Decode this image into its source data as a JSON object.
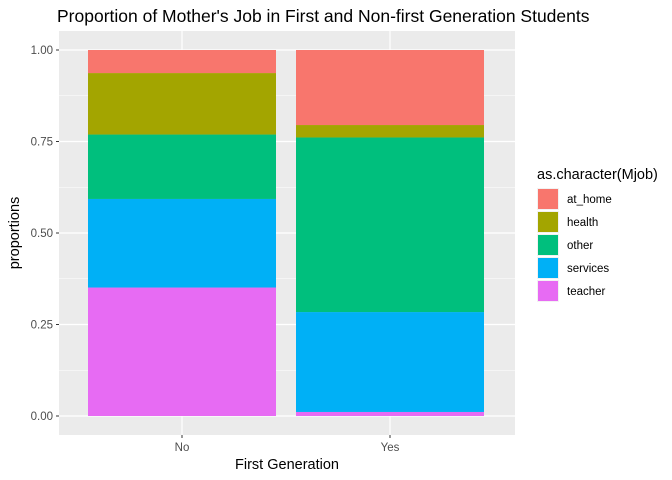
{
  "chart_data": {
    "type": "bar",
    "stacked": true,
    "title": "Proportion of Mother's Job in First and Non-first Generation Students",
    "xlabel": "First Generation",
    "ylabel": "proportions",
    "categories": [
      "No",
      "Yes"
    ],
    "ylim": [
      0,
      1
    ],
    "yticks": [
      "0.00",
      "0.25",
      "0.50",
      "0.75",
      "1.00"
    ],
    "ytick_values": [
      0,
      0.25,
      0.5,
      0.75,
      1.0
    ],
    "grid": true,
    "legend_title": "as.character(Mjob)",
    "legend_position": "right",
    "series": [
      {
        "name": "at_home",
        "color": "#F8766D",
        "values": [
          0.063,
          0.205
        ]
      },
      {
        "name": "health",
        "color": "#A3A500",
        "values": [
          0.168,
          0.034
        ]
      },
      {
        "name": "other",
        "color": "#00BF7D",
        "values": [
          0.176,
          0.477
        ]
      },
      {
        "name": "services",
        "color": "#00B0F6",
        "values": [
          0.242,
          0.273
        ]
      },
      {
        "name": "teacher",
        "color": "#E76BF3",
        "values": [
          0.351,
          0.011
        ]
      }
    ]
  }
}
